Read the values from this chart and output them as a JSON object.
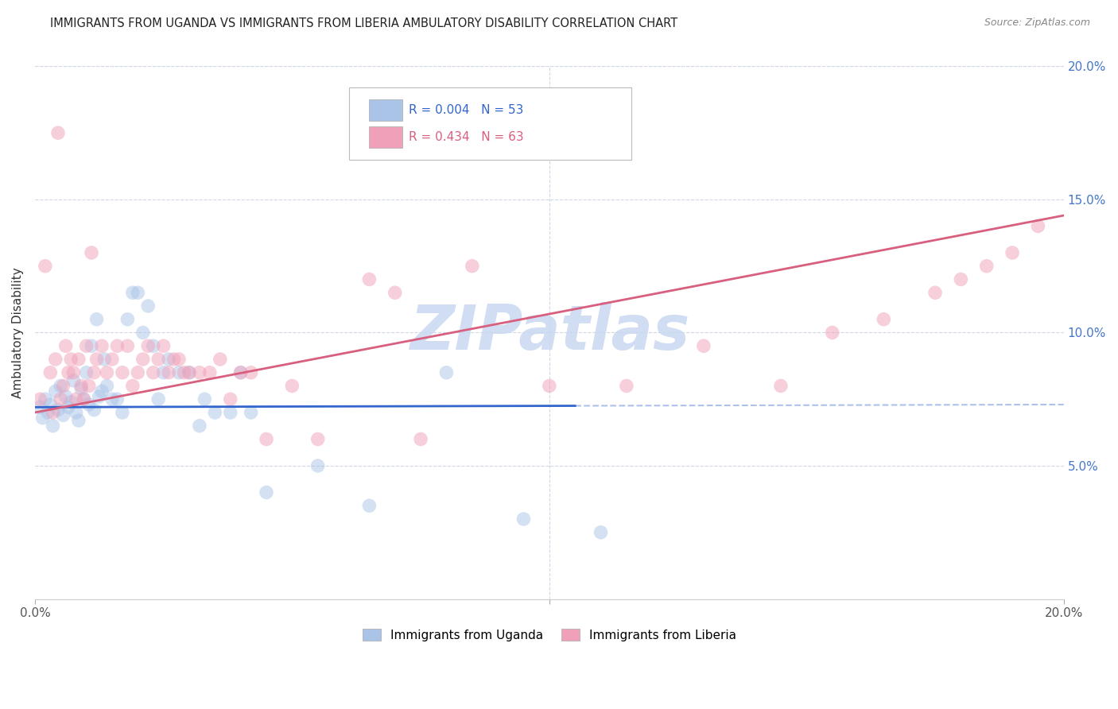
{
  "title": "IMMIGRANTS FROM UGANDA VS IMMIGRANTS FROM LIBERIA AMBULATORY DISABILITY CORRELATION CHART",
  "source": "Source: ZipAtlas.com",
  "ylabel": "Ambulatory Disability",
  "right_ytick_values": [
    5.0,
    10.0,
    15.0,
    20.0
  ],
  "xmin": 0.0,
  "xmax": 20.0,
  "ymin": 0.0,
  "ymax": 20.0,
  "series_uganda": {
    "name": "Immigrants from Uganda",
    "color": "#aac4e8",
    "trend_color": "#3366cc",
    "R": 0.004,
    "N": 53
  },
  "series_liberia": {
    "name": "Immigrants from Liberia",
    "color": "#f0a0b8",
    "trend_color": "#d95f7f",
    "R": 0.434,
    "N": 63
  },
  "watermark": "ZIPatlas",
  "watermark_color": "#c8d8f0",
  "background_color": "#ffffff",
  "grid_color": "#d0d8e8",
  "title_fontsize": 10.5,
  "source_fontsize": 9,
  "scatter_alpha": 0.5,
  "scatter_size": 160,
  "uganda_x": [
    0.1,
    0.15,
    0.2,
    0.25,
    0.3,
    0.35,
    0.4,
    0.45,
    0.5,
    0.55,
    0.6,
    0.65,
    0.7,
    0.75,
    0.8,
    0.85,
    0.9,
    0.95,
    1.0,
    1.05,
    1.1,
    1.15,
    1.2,
    1.25,
    1.3,
    1.35,
    1.4,
    1.5,
    1.6,
    1.7,
    1.8,
    1.9,
    2.0,
    2.1,
    2.2,
    2.3,
    2.4,
    2.5,
    2.6,
    2.8,
    3.0,
    3.3,
    3.5,
    3.8,
    4.0,
    4.5,
    5.5,
    6.5,
    8.0,
    9.5,
    11.0,
    3.2,
    4.2
  ],
  "uganda_y": [
    7.2,
    6.8,
    7.5,
    7.0,
    7.3,
    6.5,
    7.8,
    7.1,
    8.0,
    6.9,
    7.6,
    7.2,
    7.4,
    8.2,
    7.0,
    6.7,
    7.9,
    7.5,
    8.5,
    7.3,
    9.5,
    7.1,
    10.5,
    7.6,
    7.8,
    9.0,
    8.0,
    7.5,
    7.5,
    7.0,
    10.5,
    11.5,
    11.5,
    10.0,
    11.0,
    9.5,
    7.5,
    8.5,
    9.0,
    8.5,
    8.5,
    7.5,
    7.0,
    7.0,
    8.5,
    4.0,
    5.0,
    3.5,
    8.5,
    3.0,
    2.5,
    6.5,
    7.0
  ],
  "liberia_x": [
    0.1,
    0.2,
    0.3,
    0.35,
    0.4,
    0.5,
    0.55,
    0.6,
    0.65,
    0.7,
    0.75,
    0.8,
    0.85,
    0.9,
    0.95,
    1.0,
    1.05,
    1.1,
    1.15,
    1.2,
    1.3,
    1.4,
    1.5,
    1.6,
    1.7,
    1.8,
    1.9,
    2.0,
    2.1,
    2.2,
    2.3,
    2.4,
    2.5,
    2.6,
    2.7,
    2.8,
    2.9,
    3.0,
    3.2,
    3.4,
    3.6,
    3.8,
    4.0,
    4.2,
    4.5,
    5.0,
    5.5,
    6.5,
    7.0,
    7.5,
    8.5,
    10.0,
    11.5,
    13.0,
    14.5,
    15.5,
    16.5,
    17.5,
    18.0,
    18.5,
    19.0,
    19.5,
    0.45
  ],
  "liberia_y": [
    7.5,
    12.5,
    8.5,
    7.0,
    9.0,
    7.5,
    8.0,
    9.5,
    8.5,
    9.0,
    8.5,
    7.5,
    9.0,
    8.0,
    7.5,
    9.5,
    8.0,
    13.0,
    8.5,
    9.0,
    9.5,
    8.5,
    9.0,
    9.5,
    8.5,
    9.5,
    8.0,
    8.5,
    9.0,
    9.5,
    8.5,
    9.0,
    9.5,
    8.5,
    9.0,
    9.0,
    8.5,
    8.5,
    8.5,
    8.5,
    9.0,
    7.5,
    8.5,
    8.5,
    6.0,
    8.0,
    6.0,
    12.0,
    11.5,
    6.0,
    12.5,
    8.0,
    8.0,
    9.5,
    8.0,
    10.0,
    10.5,
    11.5,
    12.0,
    12.5,
    13.0,
    14.0,
    17.5
  ],
  "ug_trend_intercept": 7.2,
  "ug_trend_slope": 0.005,
  "lib_trend_intercept": 7.0,
  "lib_trend_slope": 0.37,
  "ug_solid_end": 10.5
}
